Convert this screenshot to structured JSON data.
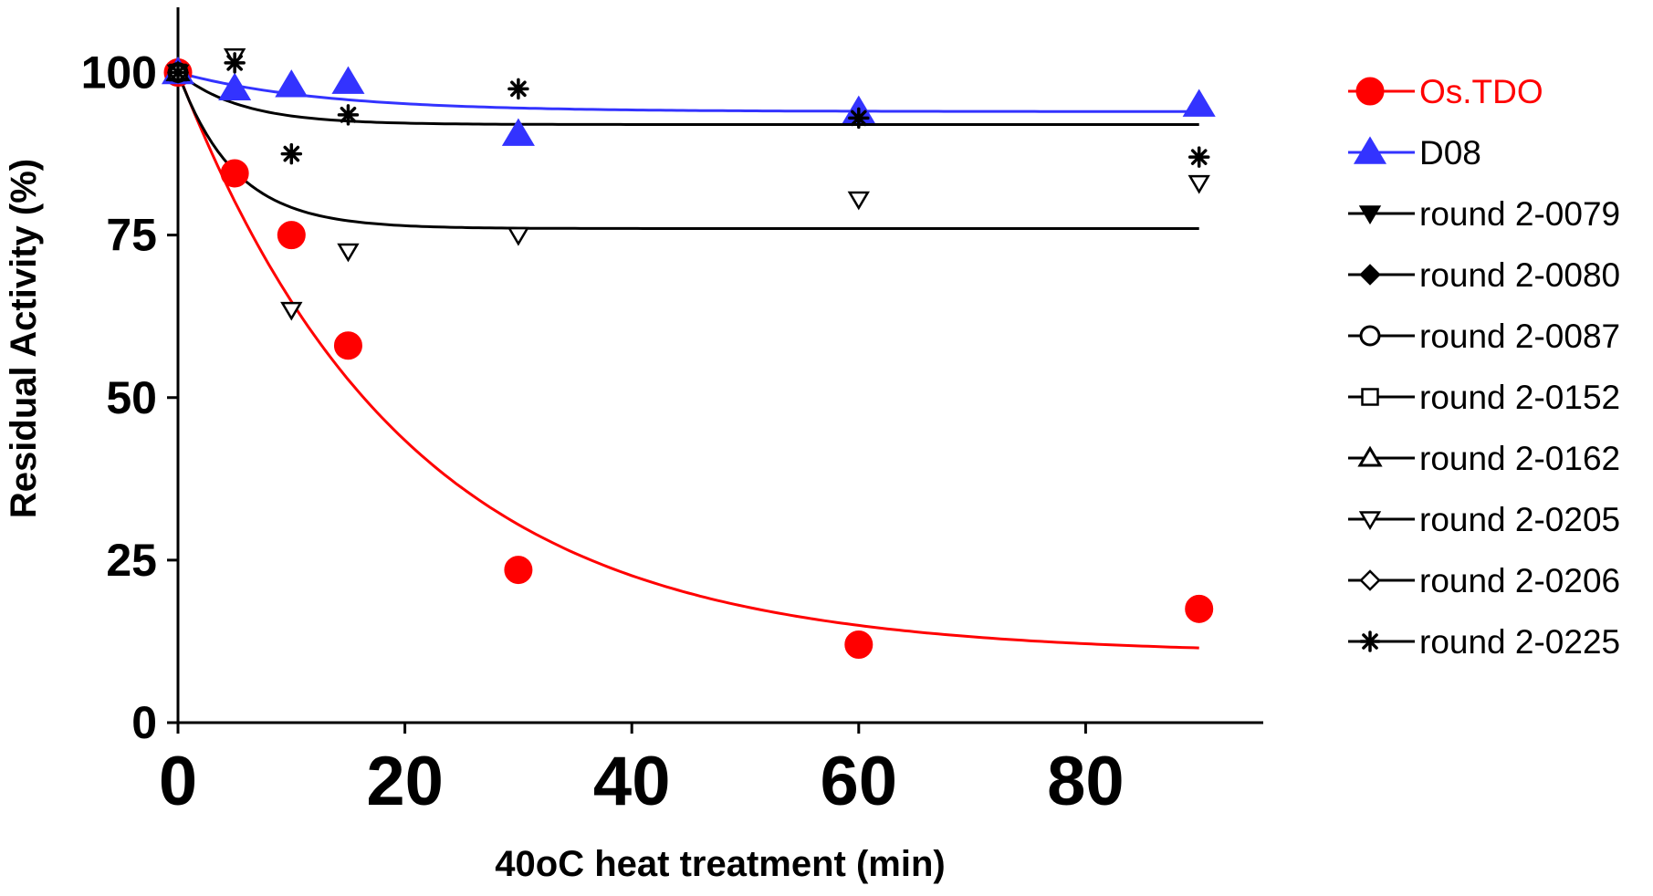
{
  "chart_data": {
    "type": "scatter",
    "xlabel": "40oC heat treatment (min)",
    "ylabel": "Residual Activity (%)",
    "xlim": [
      0,
      95
    ],
    "ylim": [
      0,
      110
    ],
    "x_ticks": [
      0,
      20,
      40,
      60,
      80
    ],
    "y_ticks": [
      0,
      25,
      50,
      75,
      100
    ],
    "legend_position": "right",
    "series": [
      {
        "name": "Os.TDO",
        "color": "#ff0000",
        "marker": "circle-filled",
        "label_color": "#ff0000",
        "x": [
          0,
          5,
          10,
          15,
          30,
          60,
          90
        ],
        "y": [
          100,
          84.5,
          75,
          58,
          23.5,
          12,
          17.5
        ],
        "fit": {
          "plateau": 10.5,
          "span": 89.5,
          "k": 0.05
        }
      },
      {
        "name": "D08",
        "color": "#3333ff",
        "marker": "triangle-up-filled",
        "label_color": "#000000",
        "x": [
          0,
          5,
          10,
          15,
          30,
          60,
          90
        ],
        "y": [
          100,
          97.5,
          98,
          98.5,
          90.5,
          94,
          95
        ],
        "fit": {
          "plateau": 94,
          "span": 6,
          "k": 0.08
        }
      },
      {
        "name": "round 2-0079",
        "color": "#000000",
        "marker": "triangle-down-filled",
        "label_color": "#000000",
        "x": [
          0
        ],
        "y": [
          100
        ]
      },
      {
        "name": "round 2-0080",
        "color": "#000000",
        "marker": "diamond-filled",
        "label_color": "#000000",
        "x": [
          0
        ],
        "y": [
          100
        ]
      },
      {
        "name": "round 2-0087",
        "color": "#000000",
        "marker": "circle-open",
        "label_color": "#000000",
        "x": [
          0
        ],
        "y": [
          100
        ]
      },
      {
        "name": "round 2-0152",
        "color": "#000000",
        "marker": "square-open",
        "label_color": "#000000",
        "x": [
          0
        ],
        "y": [
          100
        ]
      },
      {
        "name": "round 2-0162",
        "color": "#000000",
        "marker": "triangle-up-open",
        "label_color": "#000000",
        "x": [
          0
        ],
        "y": [
          100
        ]
      },
      {
        "name": "round 2-0205",
        "color": "#000000",
        "marker": "triangle-down-open",
        "label_color": "#000000",
        "x": [
          0,
          5,
          10,
          15,
          30,
          60,
          90
        ],
        "y": [
          100,
          102.5,
          63.5,
          72.5,
          75,
          80.5,
          83
        ],
        "fit": {
          "plateau": 76,
          "span": 24,
          "k": 0.2
        }
      },
      {
        "name": "round 2-0206",
        "color": "#000000",
        "marker": "diamond-open",
        "label_color": "#000000",
        "x": [
          0
        ],
        "y": [
          100
        ]
      },
      {
        "name": "round 2-0225",
        "color": "#000000",
        "marker": "asterisk",
        "label_color": "#000000",
        "x": [
          0,
          5,
          10,
          15,
          30,
          60,
          90
        ],
        "y": [
          100,
          101.5,
          87.5,
          93.5,
          97.5,
          93,
          87
        ],
        "fit": {
          "plateau": 92,
          "span": 8,
          "k": 0.18
        }
      }
    ]
  }
}
